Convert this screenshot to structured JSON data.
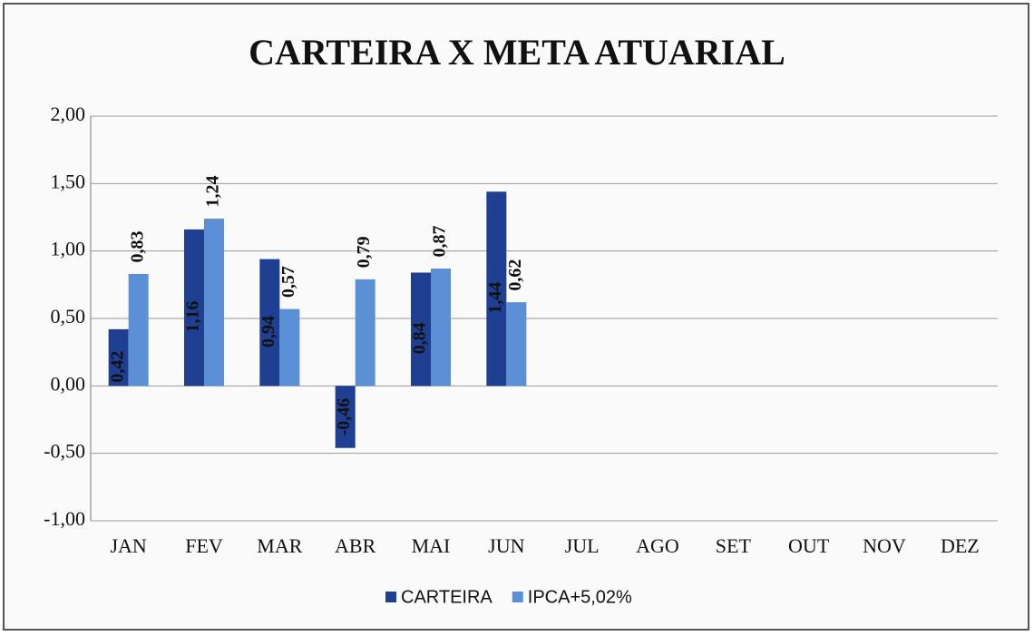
{
  "chart_data": {
    "type": "bar",
    "title": "CARTEIRA X META ATUARIAL",
    "categories": [
      "JAN",
      "FEV",
      "MAR",
      "ABR",
      "MAI",
      "JUN",
      "JUL",
      "AGO",
      "SET",
      "OUT",
      "NOV",
      "DEZ"
    ],
    "series": [
      {
        "name": "CARTEIRA",
        "color": "#1f3f93",
        "values": [
          0.42,
          1.16,
          0.94,
          -0.46,
          0.84,
          1.44,
          null,
          null,
          null,
          null,
          null,
          null
        ],
        "value_labels": [
          "0,42",
          "1,16",
          "0,94",
          "-0,46",
          "0,84",
          "1,44",
          null,
          null,
          null,
          null,
          null,
          null
        ]
      },
      {
        "name": "IPCA+5,02%",
        "color": "#5b8fd6",
        "values": [
          0.83,
          1.24,
          0.57,
          0.79,
          0.87,
          0.62,
          null,
          null,
          null,
          null,
          null,
          null
        ],
        "value_labels": [
          "0,83",
          "1,24",
          "0,57",
          "0,79",
          "0,87",
          "0,62",
          null,
          null,
          null,
          null,
          null,
          null
        ]
      }
    ],
    "ylim": [
      -1,
      2
    ],
    "yticks": [
      {
        "value": -1,
        "label": "-1,00"
      },
      {
        "value": -0.5,
        "label": "-0,50"
      },
      {
        "value": 0,
        "label": "0,00"
      },
      {
        "value": 0.5,
        "label": "0,50"
      },
      {
        "value": 1,
        "label": "1,00"
      },
      {
        "value": 1.5,
        "label": "1,50"
      },
      {
        "value": 2,
        "label": "2,00"
      }
    ],
    "grid": true,
    "legend": "bottom"
  }
}
